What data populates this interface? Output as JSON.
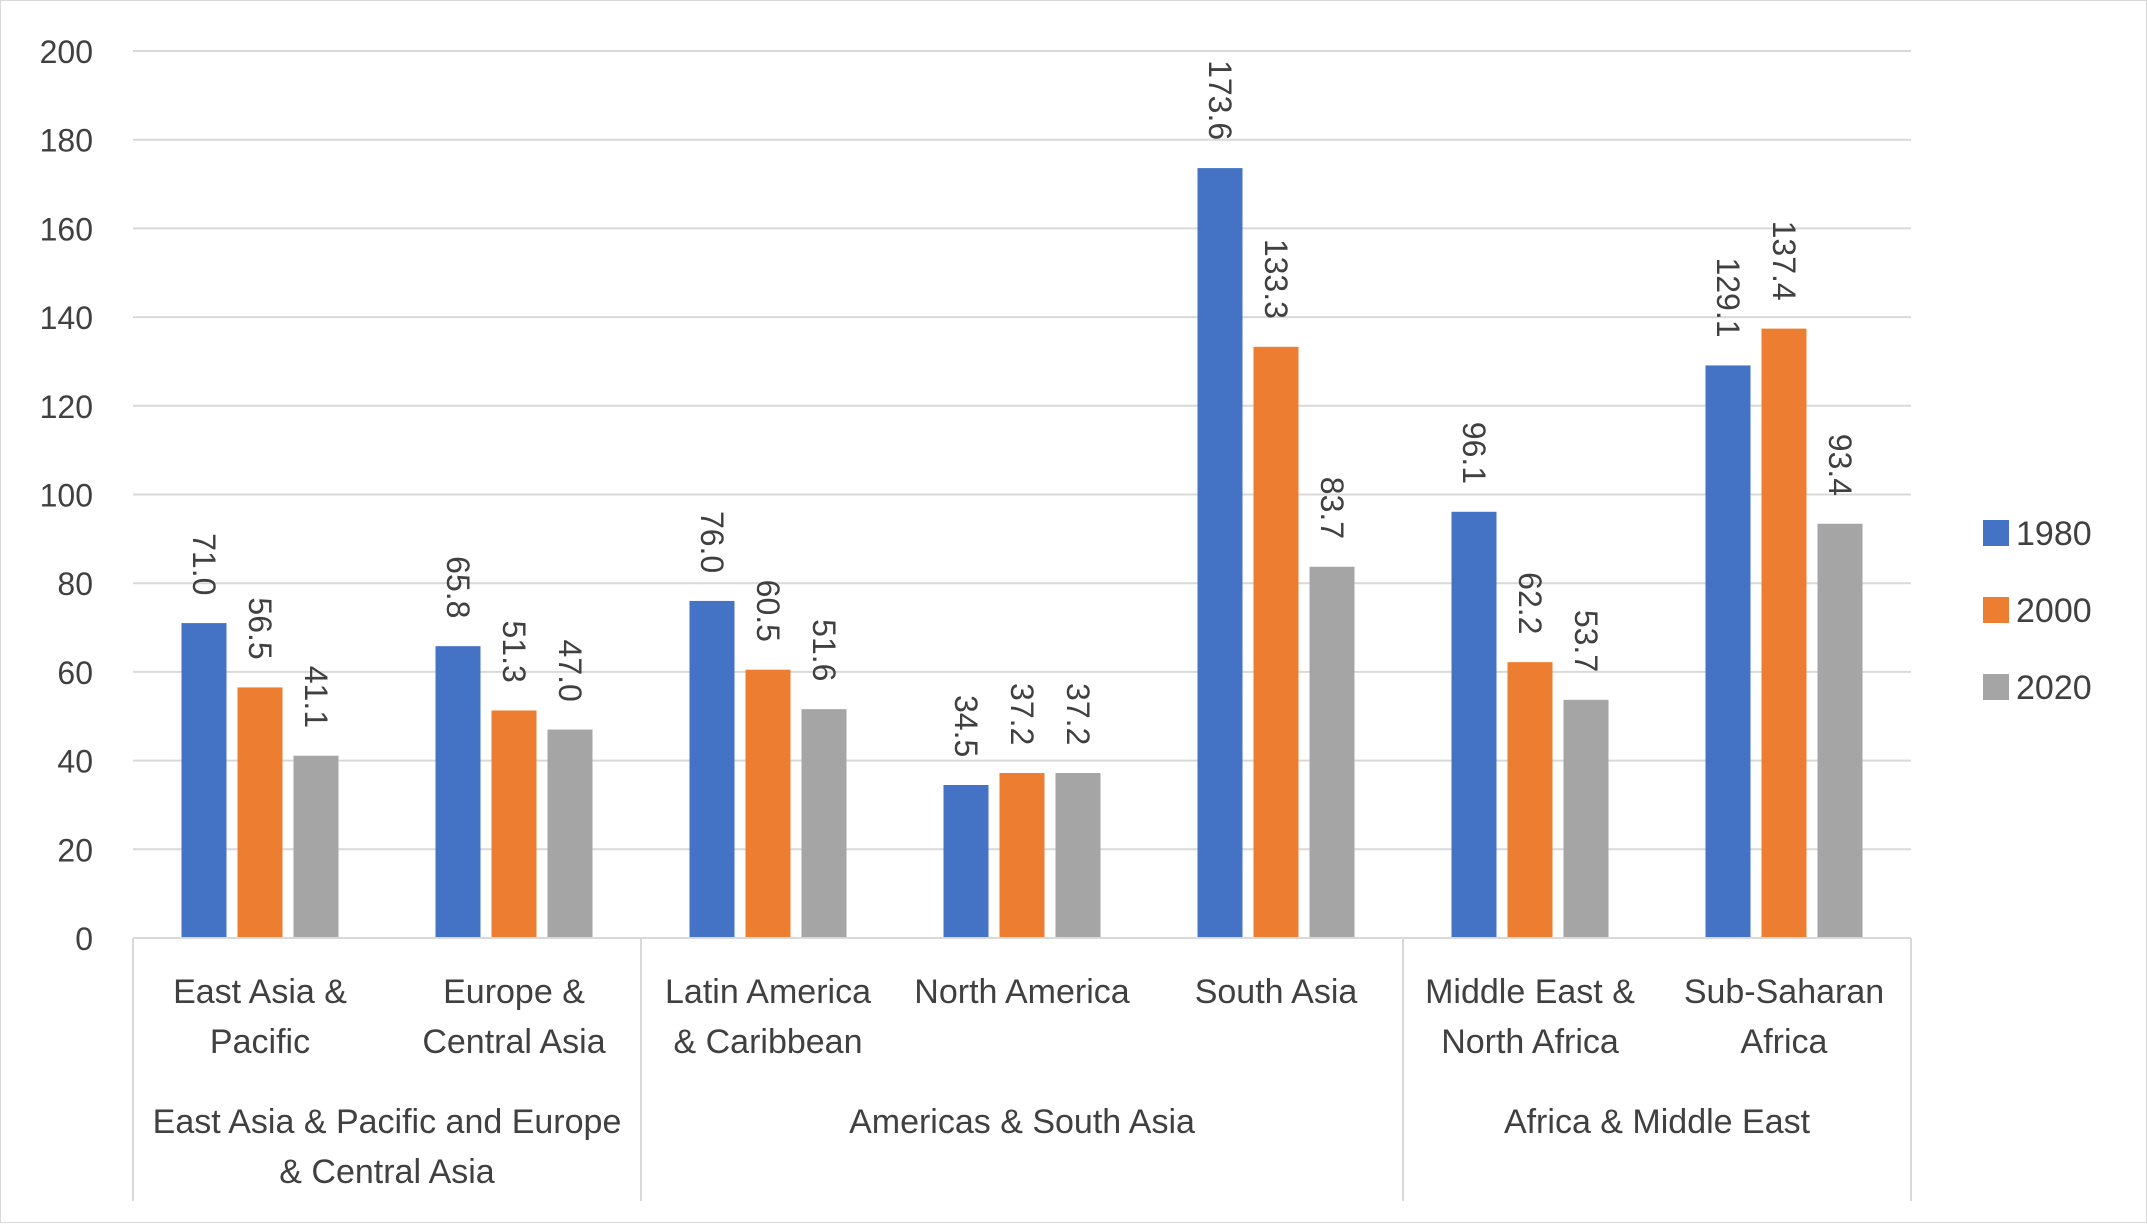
{
  "chart_data": {
    "type": "bar",
    "title": "",
    "xlabel": "",
    "ylabel": "",
    "ylim": [
      0,
      200
    ],
    "yticks": [
      0,
      20,
      40,
      60,
      80,
      100,
      120,
      140,
      160,
      180,
      200
    ],
    "grid": true,
    "legend_position": "right",
    "categories": [
      [
        "East Asia &",
        "Pacific"
      ],
      [
        "Europe &",
        "Central Asia"
      ],
      [
        "Latin America",
        "& Caribbean"
      ],
      [
        "North America"
      ],
      [
        "South Asia"
      ],
      [
        "Middle East &",
        "North Africa"
      ],
      [
        "Sub-Saharan",
        "Africa"
      ]
    ],
    "groups": [
      {
        "label": [
          "East Asia & Pacific and Europe",
          "& Central Asia"
        ],
        "span": [
          0,
          1
        ]
      },
      {
        "label": [
          "Americas & South Asia"
        ],
        "span": [
          2,
          4
        ]
      },
      {
        "label": [
          "Africa & Middle East"
        ],
        "span": [
          5,
          6
        ]
      }
    ],
    "series": [
      {
        "name": "1980",
        "color": "#4472C4",
        "values": [
          71.0,
          65.8,
          76.0,
          34.5,
          173.6,
          96.1,
          129.1
        ]
      },
      {
        "name": "2000",
        "color": "#ED7D31",
        "values": [
          56.5,
          51.3,
          60.5,
          37.2,
          133.3,
          62.2,
          137.4
        ]
      },
      {
        "name": "2020",
        "color": "#A5A5A5",
        "values": [
          41.1,
          47.0,
          51.6,
          37.2,
          83.7,
          53.7,
          93.4
        ]
      }
    ],
    "data_labels": {
      "decimals": 1,
      "rotation": "vertical"
    }
  }
}
